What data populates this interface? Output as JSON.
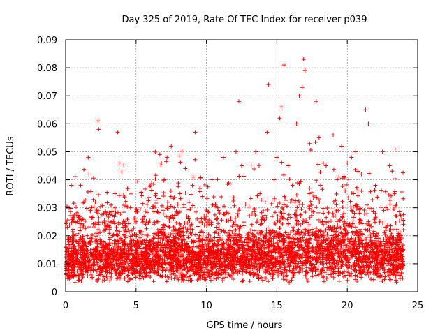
{
  "chart_data": {
    "type": "scatter",
    "title": "Day 325 of 2019, Rate Of TEC Index for receiver p039",
    "xlabel": "GPS time / hours",
    "ylabel": "ROTI / TECUs",
    "xlim": [
      0,
      25
    ],
    "ylim": [
      0,
      0.09
    ],
    "x_ticks": [
      0,
      5,
      10,
      15,
      20,
      25
    ],
    "x_tick_labels": [
      "0",
      "5",
      "10",
      "15",
      "20",
      "25"
    ],
    "y_ticks": [
      0,
      0.01,
      0.02,
      0.03,
      0.04,
      0.05,
      0.06,
      0.07,
      0.08,
      0.09
    ],
    "y_tick_labels": [
      "0",
      "0.01",
      "0.02",
      "0.03",
      "0.04",
      "0.05",
      "0.06",
      "0.07",
      "0.08",
      "0.09"
    ],
    "grid": true,
    "marker": "+",
    "color": "#ff0000",
    "series": [
      {
        "name": "ROTI",
        "x": [
          0.1,
          0.25,
          0.4,
          0.5,
          0.7,
          1.0,
          1.3,
          1.6,
          1.65,
          2.1,
          2.3,
          2.35,
          2.7,
          3.1,
          3.5,
          3.7,
          3.8,
          4.2,
          4.6,
          5.0,
          5.5,
          6.0,
          6.4,
          6.8,
          7.0,
          7.2,
          7.5,
          7.7,
          8.0,
          8.5,
          9.0,
          9.2,
          9.5,
          10.0,
          10.4,
          10.8,
          11.2,
          11.7,
          12.1,
          12.3,
          12.5,
          13.0,
          13.5,
          13.8,
          14.3,
          14.4,
          14.8,
          15.0,
          15.2,
          15.3,
          15.5,
          15.8,
          16.1,
          16.4,
          16.6,
          16.8,
          16.9,
          17.0,
          17.3,
          17.8,
          18.0,
          18.5,
          19.0,
          19.3,
          19.6,
          20.0,
          20.3,
          20.6,
          21.0,
          21.3,
          21.5,
          22.0,
          22.5,
          23.0,
          23.4,
          23.6,
          23.9,
          23.95
        ],
        "values": [
          0.012,
          0.03,
          0.038,
          0.02,
          0.015,
          0.01,
          0.032,
          0.048,
          0.042,
          0.012,
          0.061,
          0.058,
          0.028,
          0.015,
          0.035,
          0.057,
          0.046,
          0.02,
          0.03,
          0.012,
          0.025,
          0.018,
          0.035,
          0.046,
          0.04,
          0.048,
          0.052,
          0.03,
          0.015,
          0.044,
          0.038,
          0.057,
          0.02,
          0.015,
          0.04,
          0.03,
          0.048,
          0.02,
          0.05,
          0.068,
          0.045,
          0.018,
          0.05,
          0.035,
          0.057,
          0.074,
          0.04,
          0.048,
          0.062,
          0.066,
          0.081,
          0.045,
          0.038,
          0.06,
          0.07,
          0.073,
          0.083,
          0.079,
          0.035,
          0.068,
          0.055,
          0.045,
          0.056,
          0.04,
          0.052,
          0.046,
          0.048,
          0.05,
          0.042,
          0.065,
          0.06,
          0.038,
          0.05,
          0.045,
          0.051,
          0.02,
          0.012,
          0.01
        ]
      }
    ]
  }
}
